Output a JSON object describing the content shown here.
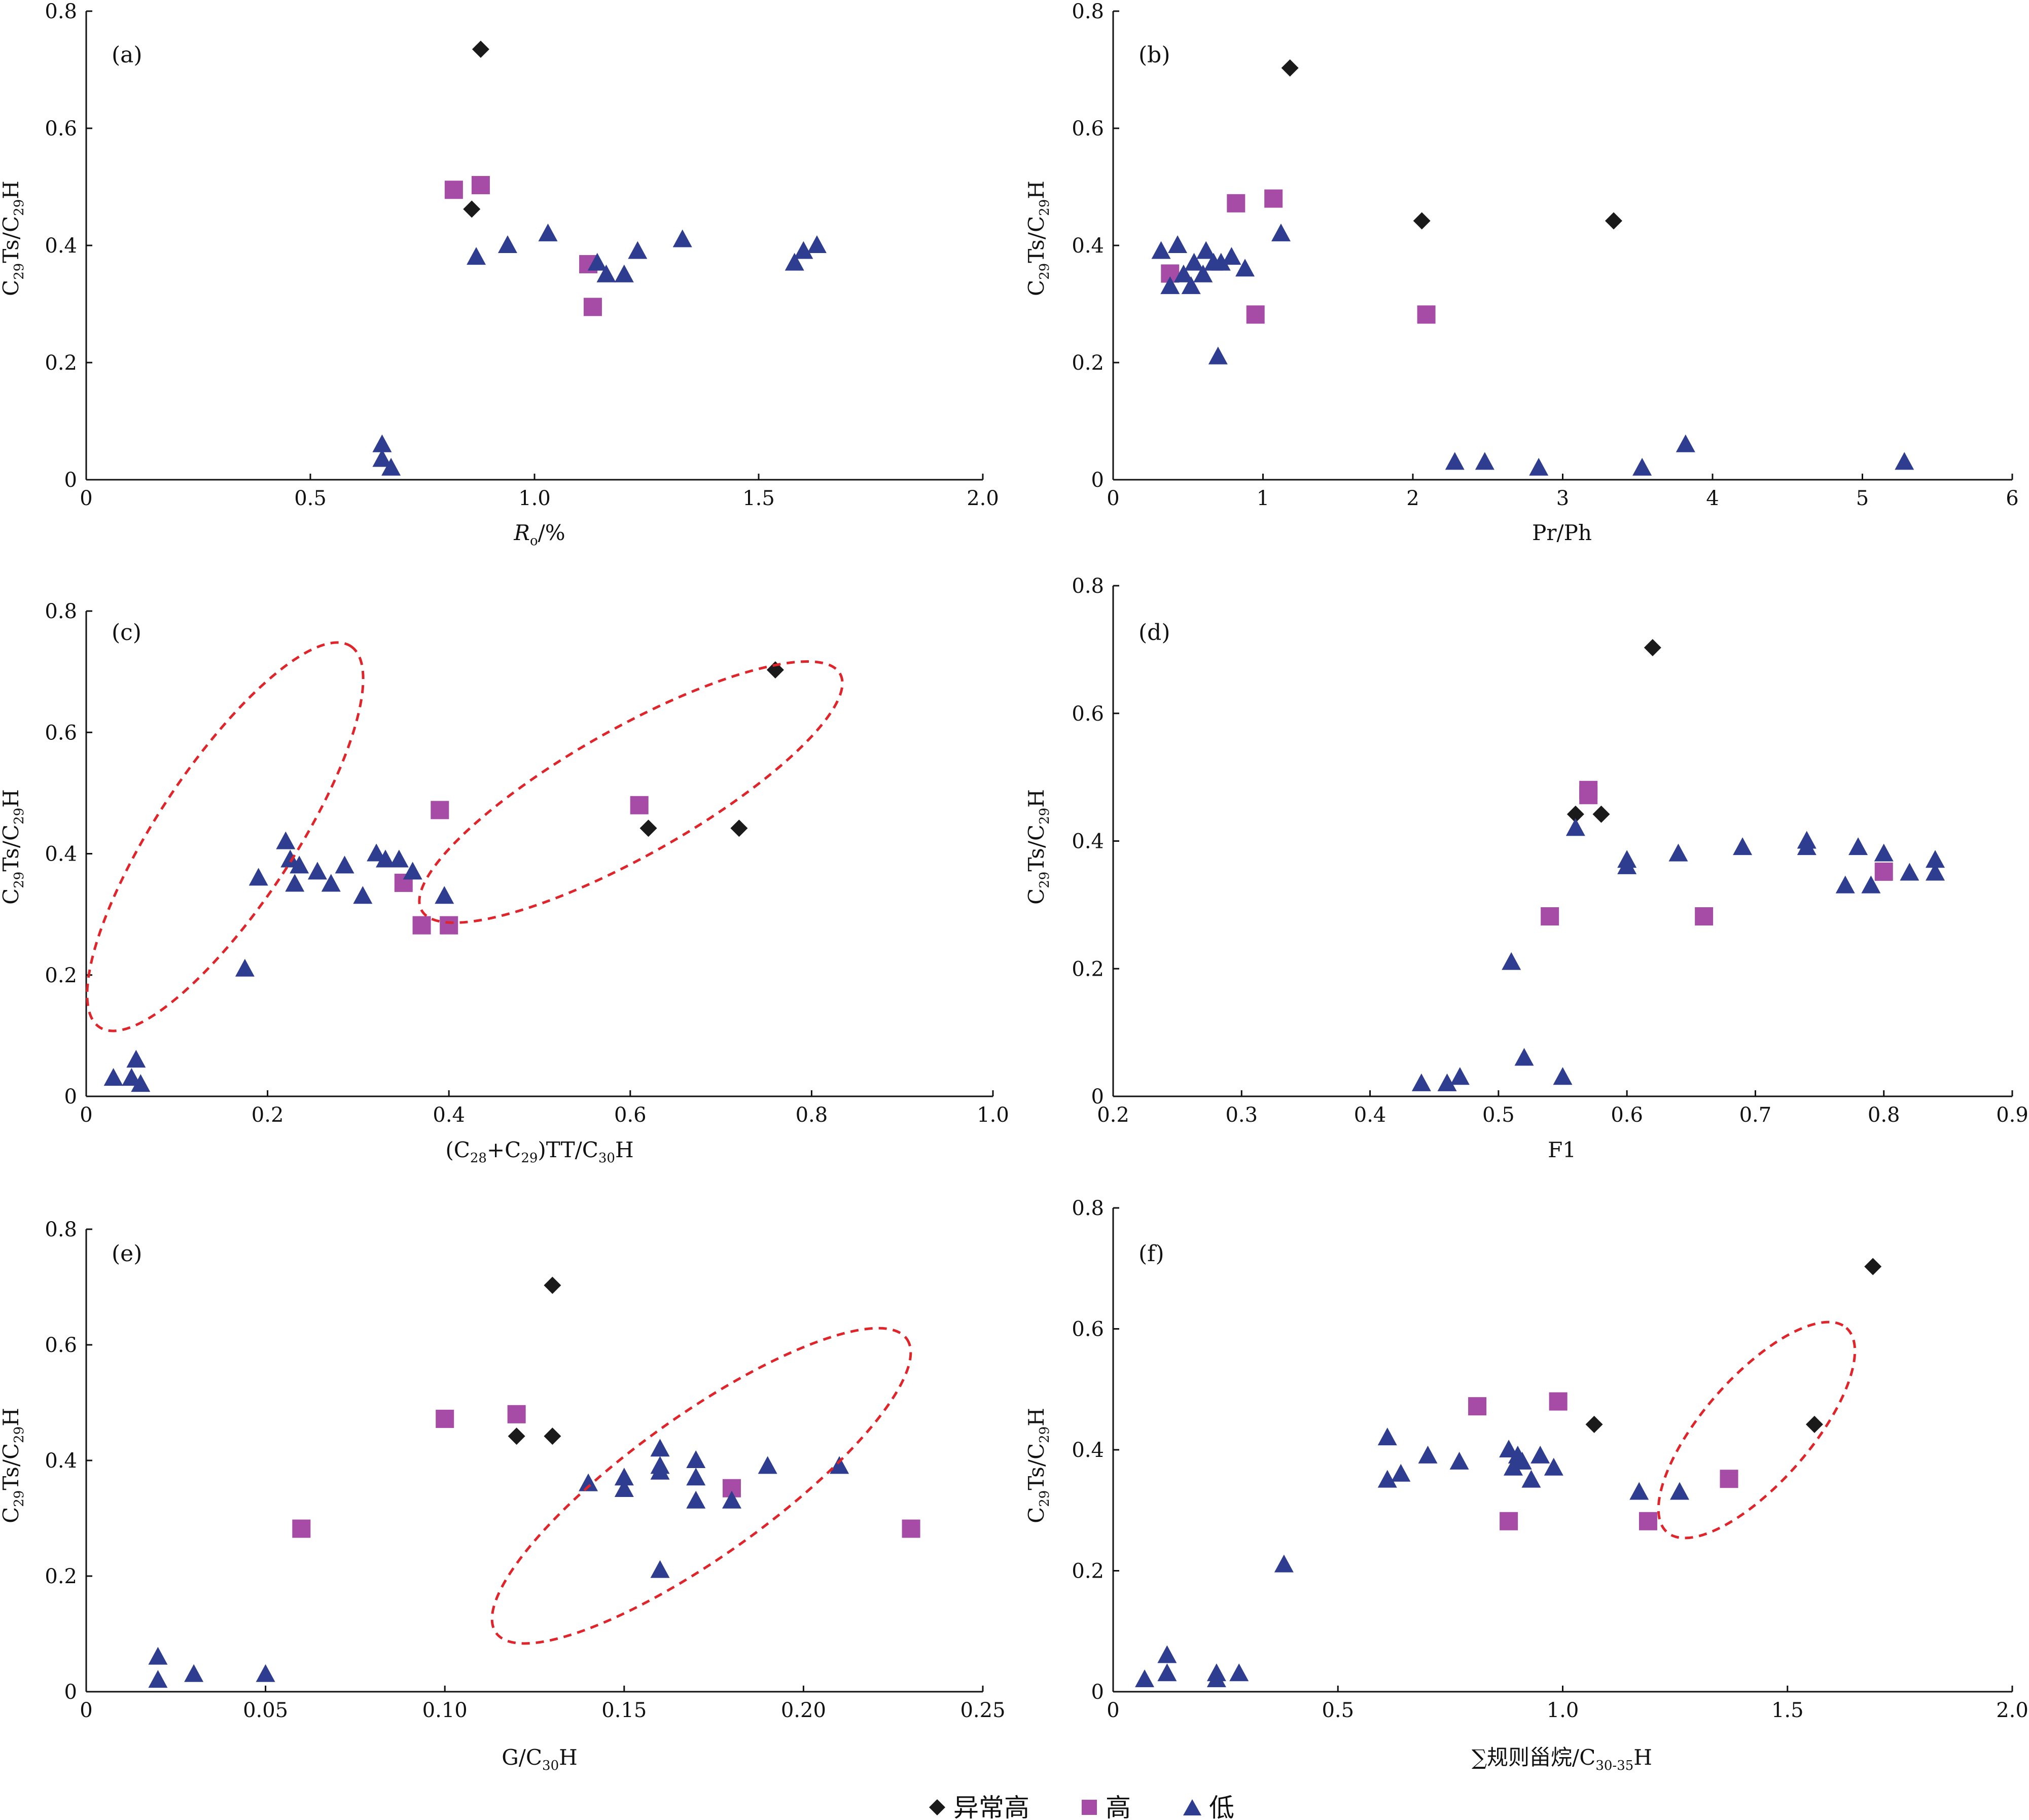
{
  "legend": [
    {
      "label": "异常高",
      "marker": "diamond",
      "color": "#1a1a1a"
    },
    {
      "label": "高",
      "marker": "square",
      "color": "#a64ca6"
    },
    {
      "label": "低",
      "marker": "triangle",
      "color": "#2e3d8f"
    }
  ],
  "chart_data": [
    {
      "type": "scatter",
      "panel_label": "(a)",
      "ylabel": "C29Ts/C29H",
      "xlabel": "Ro/%",
      "xlim": [
        0,
        2.0
      ],
      "ylim": [
        0,
        0.8
      ],
      "xticks": [
        "0",
        "0.5",
        "1.0",
        "1.5",
        "2.0"
      ],
      "yticks": [
        "0",
        "0.2",
        "0.4",
        "0.6",
        "0.8"
      ],
      "series": [
        {
          "name": "异常高",
          "points": [
            [
              0.88,
              0.735
            ],
            [
              0.86,
              0.462
            ]
          ]
        },
        {
          "name": "高",
          "points": [
            [
              0.82,
              0.495
            ],
            [
              0.88,
              0.503
            ],
            [
              1.12,
              0.368
            ],
            [
              1.13,
              0.295
            ]
          ]
        },
        {
          "name": "低",
          "points": [
            [
              0.66,
              0.06
            ],
            [
              0.66,
              0.035
            ],
            [
              0.68,
              0.02
            ],
            [
              0.87,
              0.38
            ],
            [
              0.94,
              0.4
            ],
            [
              1.03,
              0.42
            ],
            [
              1.14,
              0.37
            ],
            [
              1.16,
              0.35
            ],
            [
              1.2,
              0.35
            ],
            [
              1.23,
              0.39
            ],
            [
              1.33,
              0.41
            ],
            [
              1.58,
              0.37
            ],
            [
              1.6,
              0.39
            ],
            [
              1.63,
              0.4
            ]
          ]
        }
      ]
    },
    {
      "type": "scatter",
      "panel_label": "(b)",
      "ylabel": "C29Ts/C29H",
      "xlabel": "Pr/Ph",
      "xlim": [
        0,
        6
      ],
      "ylim": [
        0,
        0.8
      ],
      "xticks": [
        "0",
        "1",
        "2",
        "3",
        "4",
        "5",
        "6"
      ],
      "yticks": [
        "0",
        "0.2",
        "0.4",
        "0.6",
        "0.8"
      ],
      "series": [
        {
          "name": "异常高",
          "points": [
            [
              1.18,
              0.703
            ],
            [
              2.06,
              0.442
            ],
            [
              3.34,
              0.442
            ]
          ]
        },
        {
          "name": "高",
          "points": [
            [
              0.38,
              0.352
            ],
            [
              0.82,
              0.472
            ],
            [
              0.95,
              0.282
            ],
            [
              1.07,
              0.48
            ],
            [
              2.09,
              0.282
            ]
          ]
        },
        {
          "name": "低",
          "points": [
            [
              0.32,
              0.39
            ],
            [
              0.38,
              0.33
            ],
            [
              0.43,
              0.4
            ],
            [
              0.47,
              0.35
            ],
            [
              0.52,
              0.33
            ],
            [
              0.54,
              0.37
            ],
            [
              0.6,
              0.35
            ],
            [
              0.62,
              0.39
            ],
            [
              0.67,
              0.37
            ],
            [
              0.7,
              0.21
            ],
            [
              0.72,
              0.37
            ],
            [
              0.79,
              0.38
            ],
            [
              0.88,
              0.36
            ],
            [
              1.12,
              0.42
            ],
            [
              2.28,
              0.03
            ],
            [
              2.48,
              0.03
            ],
            [
              2.84,
              0.02
            ],
            [
              3.53,
              0.02
            ],
            [
              3.82,
              0.06
            ],
            [
              5.28,
              0.03
            ]
          ]
        }
      ]
    },
    {
      "type": "scatter",
      "panel_label": "(c)",
      "ylabel": "C29Ts/C29H",
      "xlabel": "(C28+C29)TT/C30H",
      "xlim": [
        0,
        1.0
      ],
      "ylim": [
        0,
        0.8
      ],
      "xticks": [
        "0",
        "0.2",
        "0.4",
        "0.6",
        "0.8",
        "1.0"
      ],
      "yticks": [
        "0",
        "0.2",
        "0.4",
        "0.6",
        "0.8"
      ],
      "series": [
        {
          "name": "异常高",
          "points": [
            [
              0.76,
              0.703
            ],
            [
              0.62,
              0.442
            ],
            [
              0.72,
              0.442
            ]
          ]
        },
        {
          "name": "高",
          "points": [
            [
              0.39,
              0.472
            ],
            [
              0.61,
              0.48
            ],
            [
              0.35,
              0.352
            ],
            [
              0.37,
              0.282
            ],
            [
              0.4,
              0.282
            ]
          ]
        },
        {
          "name": "低",
          "points": [
            [
              0.03,
              0.03
            ],
            [
              0.05,
              0.03
            ],
            [
              0.055,
              0.06
            ],
            [
              0.06,
              0.02
            ],
            [
              0.175,
              0.21
            ],
            [
              0.19,
              0.36
            ],
            [
              0.22,
              0.42
            ],
            [
              0.225,
              0.39
            ],
            [
              0.23,
              0.35
            ],
            [
              0.235,
              0.38
            ],
            [
              0.255,
              0.37
            ],
            [
              0.27,
              0.35
            ],
            [
              0.285,
              0.38
            ],
            [
              0.305,
              0.33
            ],
            [
              0.32,
              0.4
            ],
            [
              0.33,
              0.39
            ],
            [
              0.345,
              0.39
            ],
            [
              0.36,
              0.37
            ],
            [
              0.395,
              0.33
            ]
          ]
        }
      ]
    },
    {
      "type": "scatter",
      "panel_label": "(d)",
      "ylabel": "C29Ts/C29H",
      "xlabel": "F1",
      "xlim": [
        0.2,
        0.9
      ],
      "ylim": [
        0,
        0.8
      ],
      "xticks": [
        "0.2",
        "0.3",
        "0.4",
        "0.5",
        "0.6",
        "0.7",
        "0.8",
        "0.9"
      ],
      "yticks": [
        "0",
        "0.2",
        "0.4",
        "0.6",
        "0.8"
      ],
      "series": [
        {
          "name": "异常高",
          "points": [
            [
              0.62,
              0.703
            ],
            [
              0.56,
              0.442
            ],
            [
              0.58,
              0.442
            ]
          ]
        },
        {
          "name": "高",
          "points": [
            [
              0.57,
              0.472
            ],
            [
              0.57,
              0.48
            ],
            [
              0.54,
              0.282
            ],
            [
              0.66,
              0.282
            ],
            [
              0.8,
              0.352
            ]
          ]
        },
        {
          "name": "低",
          "points": [
            [
              0.44,
              0.02
            ],
            [
              0.46,
              0.02
            ],
            [
              0.47,
              0.03
            ],
            [
              0.51,
              0.21
            ],
            [
              0.52,
              0.06
            ],
            [
              0.55,
              0.03
            ],
            [
              0.56,
              0.42
            ],
            [
              0.6,
              0.37
            ],
            [
              0.6,
              0.36
            ],
            [
              0.64,
              0.38
            ],
            [
              0.69,
              0.39
            ],
            [
              0.74,
              0.4
            ],
            [
              0.74,
              0.39
            ],
            [
              0.77,
              0.33
            ],
            [
              0.78,
              0.39
            ],
            [
              0.79,
              0.33
            ],
            [
              0.8,
              0.38
            ],
            [
              0.82,
              0.35
            ],
            [
              0.84,
              0.37
            ],
            [
              0.84,
              0.35
            ]
          ]
        }
      ]
    },
    {
      "type": "scatter",
      "panel_label": "(e)",
      "ylabel": "C29Ts/C29H",
      "xlabel": "G/C30H",
      "xlim": [
        0,
        0.25
      ],
      "ylim": [
        0,
        0.8
      ],
      "xticks": [
        "0",
        "0.05",
        "0.10",
        "0.15",
        "0.20",
        "0.25"
      ],
      "yticks": [
        "0",
        "0.2",
        "0.4",
        "0.6",
        "0.8"
      ],
      "series": [
        {
          "name": "异常高",
          "points": [
            [
              0.13,
              0.703
            ],
            [
              0.12,
              0.442
            ],
            [
              0.13,
              0.442
            ]
          ]
        },
        {
          "name": "高",
          "points": [
            [
              0.1,
              0.472
            ],
            [
              0.12,
              0.48
            ],
            [
              0.06,
              0.282
            ],
            [
              0.18,
              0.352
            ],
            [
              0.23,
              0.282
            ]
          ]
        },
        {
          "name": "低",
          "points": [
            [
              0.02,
              0.06
            ],
            [
              0.02,
              0.02
            ],
            [
              0.03,
              0.03
            ],
            [
              0.05,
              0.03
            ],
            [
              0.14,
              0.36
            ],
            [
              0.15,
              0.37
            ],
            [
              0.15,
              0.35
            ],
            [
              0.16,
              0.42
            ],
            [
              0.16,
              0.39
            ],
            [
              0.16,
              0.38
            ],
            [
              0.16,
              0.21
            ],
            [
              0.17,
              0.4
            ],
            [
              0.17,
              0.37
            ],
            [
              0.17,
              0.33
            ],
            [
              0.18,
              0.33
            ],
            [
              0.19,
              0.39
            ],
            [
              0.21,
              0.39
            ]
          ]
        }
      ]
    },
    {
      "type": "scatter",
      "panel_label": "(f)",
      "ylabel": "C29Ts/C29H",
      "xlabel": "∑规则甾烷/C30-35H",
      "xlim": [
        0,
        2.0
      ],
      "ylim": [
        0,
        0.8
      ],
      "xticks": [
        "0",
        "0.5",
        "1.0",
        "1.5",
        "2.0"
      ],
      "yticks": [
        "0",
        "0.2",
        "0.4",
        "0.6",
        "0.8"
      ],
      "series": [
        {
          "name": "异常高",
          "points": [
            [
              1.69,
              0.703
            ],
            [
              1.07,
              0.442
            ],
            [
              1.56,
              0.442
            ]
          ]
        },
        {
          "name": "高",
          "points": [
            [
              0.81,
              0.472
            ],
            [
              0.99,
              0.48
            ],
            [
              0.88,
              0.282
            ],
            [
              1.19,
              0.282
            ],
            [
              1.37,
              0.352
            ]
          ]
        },
        {
          "name": "低",
          "points": [
            [
              0.07,
              0.02
            ],
            [
              0.12,
              0.06
            ],
            [
              0.12,
              0.03
            ],
            [
              0.23,
              0.03
            ],
            [
              0.23,
              0.02
            ],
            [
              0.28,
              0.03
            ],
            [
              0.38,
              0.21
            ],
            [
              0.61,
              0.42
            ],
            [
              0.61,
              0.35
            ],
            [
              0.64,
              0.36
            ],
            [
              0.7,
              0.39
            ],
            [
              0.77,
              0.38
            ],
            [
              0.88,
              0.4
            ],
            [
              0.89,
              0.37
            ],
            [
              0.9,
              0.39
            ],
            [
              0.91,
              0.38
            ],
            [
              0.93,
              0.35
            ],
            [
              0.95,
              0.39
            ],
            [
              0.98,
              0.37
            ],
            [
              1.17,
              0.33
            ],
            [
              1.26,
              0.33
            ]
          ]
        }
      ]
    }
  ]
}
